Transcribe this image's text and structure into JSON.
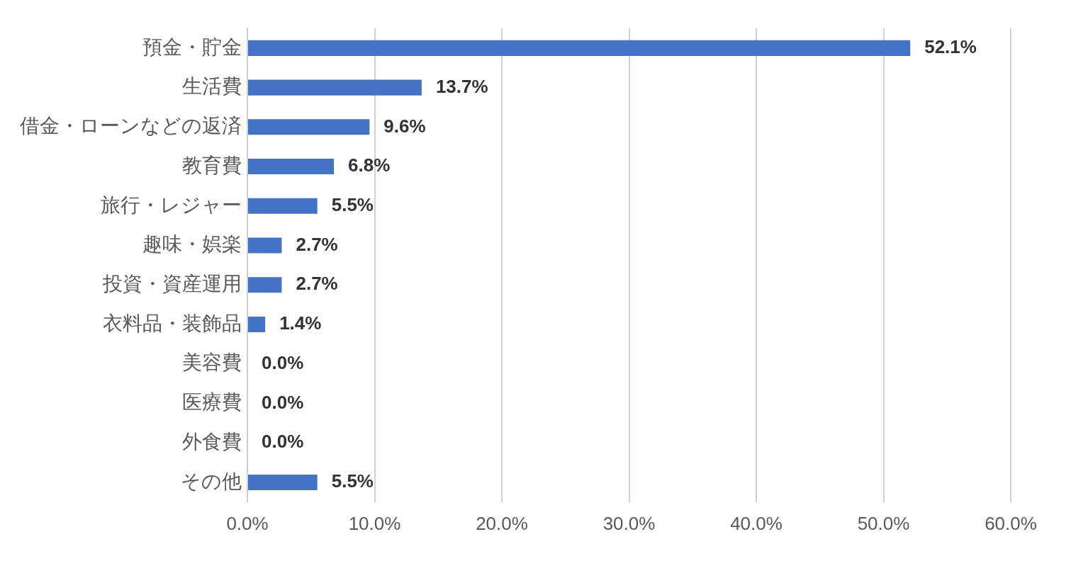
{
  "chart_data": {
    "type": "bar",
    "orientation": "horizontal",
    "categories": [
      "預金・貯金",
      "生活費",
      "借金・ローンなどの返済",
      "教育費",
      "旅行・レジャー",
      "趣味・娯楽",
      "投資・資産運用",
      "衣料品・装飾品",
      "美容費",
      "医療費",
      "外食費",
      "その他"
    ],
    "values": [
      52.1,
      13.7,
      9.6,
      6.8,
      5.5,
      2.7,
      2.7,
      1.4,
      0.0,
      0.0,
      0.0,
      5.5
    ],
    "value_labels": [
      "52.1%",
      "13.7%",
      "9.6%",
      "6.8%",
      "5.5%",
      "2.7%",
      "2.7%",
      "1.4%",
      "0.0%",
      "0.0%",
      "0.0%",
      "5.5%"
    ],
    "color": "#4472c4",
    "xlim": [
      0,
      60
    ],
    "xticks": [
      {
        "value": 0,
        "label": "0.0%"
      },
      {
        "value": 10,
        "label": "10.0%"
      },
      {
        "value": 20,
        "label": "20.0%"
      },
      {
        "value": 30,
        "label": "30.0%"
      },
      {
        "value": 40,
        "label": "40.0%"
      },
      {
        "value": 50,
        "label": "50.0%"
      },
      {
        "value": 60,
        "label": "60.0%"
      }
    ],
    "grid": "x"
  }
}
